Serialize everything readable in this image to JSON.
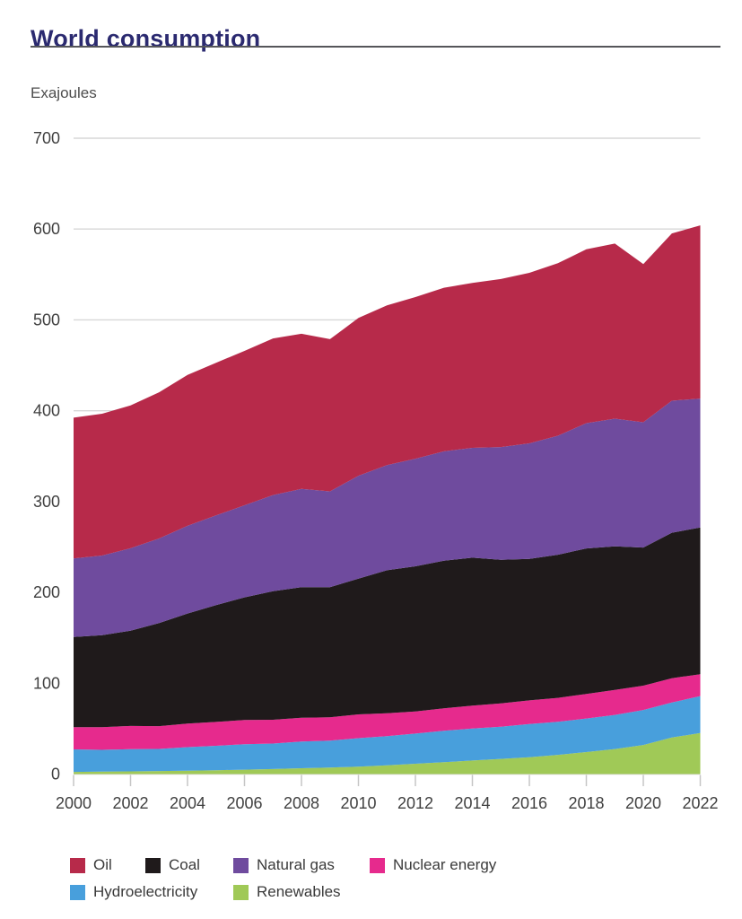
{
  "page": {
    "title": "World consumption",
    "unit_label": "Exajoules"
  },
  "colors": {
    "title_text": "#2b2a70",
    "title_rule": "#55565a",
    "axis_text": "#404040",
    "gridline": "#d7d7d7",
    "tick_mark": "#c6c6c6",
    "legend_text": "#3a3a3a"
  },
  "chart_data": {
    "type": "area",
    "stacked": true,
    "title": "World consumption",
    "ylabel": "Exajoules",
    "xlabel": "",
    "ylim": [
      0,
      700
    ],
    "y_tick_step": 100,
    "x_tick_label_step": 2,
    "grid": "horizontal",
    "legend_position": "bottom-left",
    "x": [
      2000,
      2001,
      2002,
      2003,
      2004,
      2005,
      2006,
      2007,
      2008,
      2009,
      2010,
      2011,
      2012,
      2013,
      2014,
      2015,
      2016,
      2017,
      2018,
      2019,
      2020,
      2021,
      2022
    ],
    "stack_order_bottom_to_top": [
      "Renewables",
      "Hydroelectricity",
      "Nuclear energy",
      "Coal",
      "Natural gas",
      "Oil"
    ],
    "series": [
      {
        "name": "Oil",
        "color": "#b72a4a",
        "values": [
          155.0,
          156.1,
          157.2,
          160.9,
          166.2,
          168.1,
          169.9,
          172.4,
          170.8,
          167.6,
          173.7,
          175.8,
          177.9,
          180.1,
          181.5,
          185.0,
          187.7,
          189.9,
          191.4,
          192.8,
          174.1,
          184.2,
          190.7
        ]
      },
      {
        "name": "Coal",
        "color": "#1f1a1b",
        "values": [
          99.4,
          101.2,
          104.9,
          113.4,
          121.2,
          128.6,
          135.0,
          141.5,
          143.8,
          143.3,
          149.5,
          157.4,
          159.7,
          162.5,
          162.8,
          158.0,
          155.7,
          157.6,
          160.2,
          158.1,
          152.1,
          160.2,
          161.5
        ]
      },
      {
        "name": "Natural gas",
        "color": "#6f4b9e",
        "values": [
          86.3,
          87.7,
          90.7,
          93.2,
          96.5,
          98.7,
          101.4,
          105.9,
          108.2,
          105.4,
          113.2,
          115.7,
          118.5,
          120.4,
          120.9,
          124.2,
          127.3,
          131.0,
          137.9,
          140.5,
          137.9,
          145.3,
          141.9
        ]
      },
      {
        "name": "Nuclear energy",
        "color": "#e62a8d",
        "values": [
          24.4,
          25.0,
          25.6,
          25.1,
          26.0,
          26.3,
          26.7,
          26.2,
          26.1,
          25.7,
          26.2,
          25.3,
          24.4,
          24.8,
          25.2,
          25.6,
          26.1,
          26.4,
          27.0,
          27.5,
          26.8,
          26.8,
          24.1
        ]
      },
      {
        "name": "Hydroelectricity",
        "color": "#489fdc",
        "values": [
          24.8,
          24.0,
          24.4,
          24.3,
          25.8,
          26.9,
          28.0,
          28.1,
          29.4,
          29.7,
          31.3,
          32.0,
          33.2,
          34.6,
          35.3,
          35.5,
          36.4,
          36.4,
          37.0,
          37.5,
          38.5,
          38.5,
          40.7
        ]
      },
      {
        "name": "Renewables",
        "color": "#a0c957",
        "values": [
          2.4,
          2.7,
          3.0,
          3.4,
          3.8,
          4.2,
          4.8,
          5.5,
          6.4,
          7.1,
          8.2,
          9.7,
          11.4,
          13.0,
          14.9,
          16.7,
          18.6,
          21.1,
          24.2,
          27.6,
          32.0,
          40.2,
          45.2
        ]
      }
    ]
  }
}
